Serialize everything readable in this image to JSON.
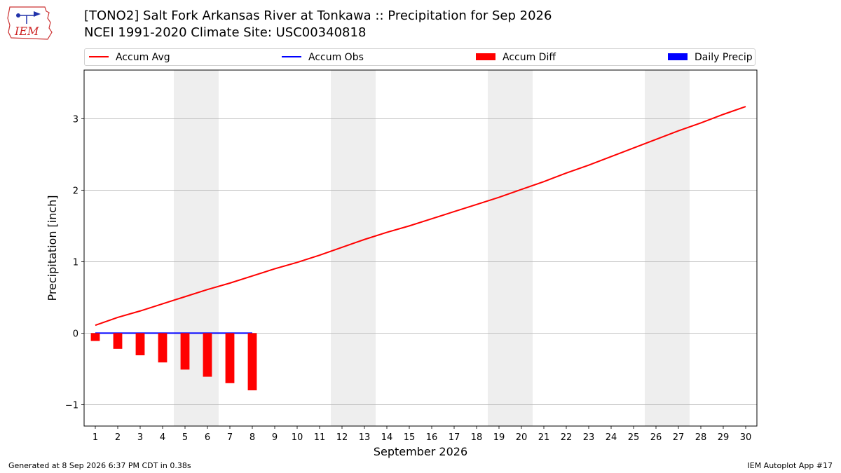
{
  "header": {
    "title_line1": "[TONO2] Salt Fork Arkansas River at Tonkawa :: Precipitation for Sep 2026",
    "title_line2": "NCEI 1991-2020 Climate Site: USC00340818",
    "logo_text": "IEM"
  },
  "legend": {
    "items": [
      {
        "label": "Accum Avg",
        "color": "#ff0000",
        "kind": "line"
      },
      {
        "label": "Accum Obs",
        "color": "#0000ff",
        "kind": "line"
      },
      {
        "label": "Accum Diff",
        "color": "#ff0000",
        "kind": "box"
      },
      {
        "label": "Daily Precip",
        "color": "#0000ff",
        "kind": "box"
      }
    ]
  },
  "footer": {
    "left": "Generated at 8 Sep 2026 6:37 PM CDT in 0.38s",
    "right": "IEM Autoplot App #17"
  },
  "chart_data": {
    "type": "line",
    "xlabel": "September 2026",
    "ylabel": "Precipitation [inch]",
    "xlim": [
      0.5,
      30.5
    ],
    "ylim": [
      -1.3,
      3.68
    ],
    "yticks": [
      -1,
      0,
      1,
      2,
      3
    ],
    "ytick_labels": [
      "−1",
      "0",
      "1",
      "2",
      "3"
    ],
    "x": [
      1,
      2,
      3,
      4,
      5,
      6,
      7,
      8,
      9,
      10,
      11,
      12,
      13,
      14,
      15,
      16,
      17,
      18,
      19,
      20,
      21,
      22,
      23,
      24,
      25,
      26,
      27,
      28,
      29,
      30
    ],
    "grid": "horizontal",
    "weekend_shading": [
      [
        4.5,
        6.5
      ],
      [
        11.5,
        13.5
      ],
      [
        18.5,
        20.5
      ],
      [
        25.5,
        27.5
      ]
    ],
    "series": [
      {
        "name": "Accum Avg",
        "color": "#ff0000",
        "kind": "line",
        "values": [
          0.11,
          0.22,
          0.31,
          0.41,
          0.51,
          0.61,
          0.7,
          0.8,
          0.9,
          0.99,
          1.09,
          1.2,
          1.31,
          1.41,
          1.5,
          1.6,
          1.7,
          1.8,
          1.9,
          2.01,
          2.12,
          2.24,
          2.35,
          2.47,
          2.59,
          2.71,
          2.83,
          2.94,
          3.06,
          3.17
        ]
      },
      {
        "name": "Accum Obs",
        "color": "#0000ff",
        "kind": "line",
        "x": [
          1,
          2,
          3,
          4,
          5,
          6,
          7,
          8
        ],
        "values": [
          0,
          0,
          0,
          0,
          0,
          0,
          0,
          0
        ]
      },
      {
        "name": "Accum Diff",
        "color": "#ff0000",
        "kind": "bar",
        "x": [
          1,
          2,
          3,
          4,
          5,
          6,
          7,
          8
        ],
        "values": [
          -0.11,
          -0.22,
          -0.31,
          -0.41,
          -0.51,
          -0.61,
          -0.7,
          -0.8
        ]
      },
      {
        "name": "Daily Precip",
        "color": "#0000ff",
        "kind": "bar",
        "x": [
          1,
          2,
          3,
          4,
          5,
          6,
          7,
          8
        ],
        "values": [
          0,
          0,
          0,
          0,
          0,
          0,
          0,
          0
        ]
      }
    ]
  }
}
